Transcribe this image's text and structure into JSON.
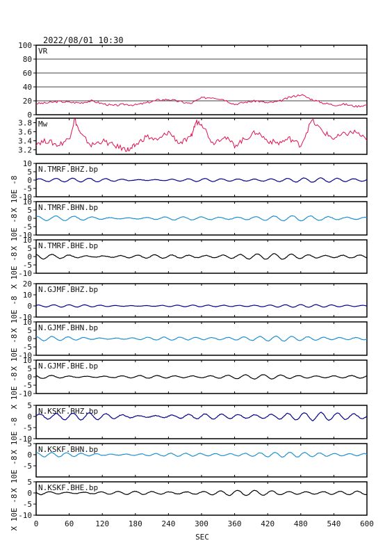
{
  "title": "2022/08/01  10:30",
  "xlabel": "SEC",
  "ylabel_units": "X 10E -8",
  "x_ticks": [
    0,
    60,
    120,
    180,
    240,
    300,
    360,
    420,
    480,
    540,
    600
  ],
  "colors": {
    "vr": "#e0114f",
    "mw": "#e0114f",
    "bhz": "#00008b",
    "bhn": "#1e90d0",
    "bhe": "#000000"
  },
  "chart_data": [
    {
      "id": "vr",
      "type": "line",
      "label": "VR",
      "ylim": [
        0,
        100
      ],
      "y_ticks": [
        0,
        20,
        40,
        60,
        80,
        100
      ],
      "x": [
        0,
        20,
        40,
        60,
        80,
        100,
        120,
        140,
        160,
        180,
        200,
        220,
        240,
        260,
        280,
        300,
        320,
        340,
        360,
        380,
        400,
        420,
        440,
        460,
        480,
        500,
        520,
        540,
        560,
        580,
        600
      ],
      "values": [
        16,
        17,
        19,
        18,
        17,
        20,
        16,
        13,
        15,
        14,
        17,
        21,
        22,
        19,
        16,
        24,
        25,
        22,
        15,
        18,
        20,
        17,
        19,
        25,
        29,
        22,
        17,
        14,
        15,
        12,
        14
      ]
    },
    {
      "id": "mw",
      "type": "line",
      "label": "Mw",
      "ylim": [
        3.1,
        3.9
      ],
      "y_ticks": [
        3.2,
        3.4,
        3.6,
        3.8
      ],
      "x": [
        0,
        20,
        40,
        60,
        70,
        80,
        100,
        120,
        140,
        160,
        170,
        180,
        200,
        220,
        240,
        260,
        280,
        290,
        300,
        320,
        340,
        360,
        380,
        400,
        420,
        440,
        460,
        480,
        500,
        520,
        540,
        560,
        580,
        600
      ],
      "values": [
        3.35,
        3.4,
        3.3,
        3.45,
        3.88,
        3.55,
        3.3,
        3.4,
        3.3,
        3.22,
        3.2,
        3.3,
        3.5,
        3.4,
        3.6,
        3.35,
        3.45,
        3.82,
        3.8,
        3.35,
        3.5,
        3.3,
        3.45,
        3.6,
        3.4,
        3.35,
        3.45,
        3.3,
        3.85,
        3.6,
        3.45,
        3.55,
        3.6,
        3.4
      ]
    },
    {
      "id": "tmrf-bhz",
      "type": "line",
      "label": "N.TMRF.BHZ.bp",
      "color": "bhz",
      "ylim": [
        -10,
        10
      ],
      "y_ticks": [
        -10,
        -5,
        0,
        5,
        10
      ],
      "amp": 1.1,
      "period": 30,
      "phase": 0.3
    },
    {
      "id": "tmrf-bhn",
      "type": "line",
      "label": "N.TMRF.BHN.bp",
      "color": "bhn",
      "ylim": [
        -10,
        10
      ],
      "y_ticks": [
        -10,
        -5,
        0,
        5,
        10
      ],
      "amp": 1.3,
      "period": 33,
      "phase": 1.1
    },
    {
      "id": "tmrf-bhe",
      "type": "line",
      "label": "N.TMRF.BHE.bp",
      "color": "bhe",
      "ylim": [
        -10,
        10
      ],
      "y_ticks": [
        -10,
        -5,
        0,
        5,
        10
      ],
      "amp": 1.4,
      "period": 31,
      "phase": 2.0
    },
    {
      "id": "gjmf-bhz",
      "type": "line",
      "label": "N.GJMF.BHZ.bp",
      "color": "bhz",
      "ylim": [
        -10,
        20
      ],
      "y_ticks": [
        -10,
        0,
        10,
        20
      ],
      "amp": 1.0,
      "period": 28,
      "phase": 0.7
    },
    {
      "id": "gjmf-bhn",
      "type": "line",
      "label": "N.GJMF.BHN.bp",
      "color": "bhn",
      "ylim": [
        -10,
        10
      ],
      "y_ticks": [
        -10,
        -5,
        0,
        5,
        10
      ],
      "amp": 1.2,
      "period": 29,
      "phase": 1.6
    },
    {
      "id": "gjmf-bhe",
      "type": "line",
      "label": "N.GJMF.BHE.bp",
      "color": "bhe",
      "ylim": [
        -10,
        10
      ],
      "y_ticks": [
        -10,
        -5,
        0,
        5,
        10
      ],
      "amp": 1.1,
      "period": 32,
      "phase": 2.4
    },
    {
      "id": "kskf-bhz",
      "type": "line",
      "label": "N.KSKF.BHZ.bp",
      "color": "bhz",
      "ylim": [
        -10,
        5
      ],
      "y_ticks": [
        -10,
        -5,
        0,
        5
      ],
      "amp": 1.5,
      "period": 30,
      "phase": 0.2
    },
    {
      "id": "kskf-bhn",
      "type": "line",
      "label": "N.KSKF.BHN.bp",
      "color": "bhn",
      "ylim": [
        -10,
        5
      ],
      "y_ticks": [
        -5,
        0,
        5
      ],
      "amp": 0.9,
      "period": 27,
      "phase": 1.3
    },
    {
      "id": "kskf-bhe",
      "type": "line",
      "label": "N.KSKF.BHE.bp",
      "color": "bhe",
      "ylim": [
        -10,
        5
      ],
      "y_ticks": [
        -10,
        -5,
        0,
        5
      ],
      "amp": 1.0,
      "period": 31,
      "phase": 2.9
    }
  ]
}
